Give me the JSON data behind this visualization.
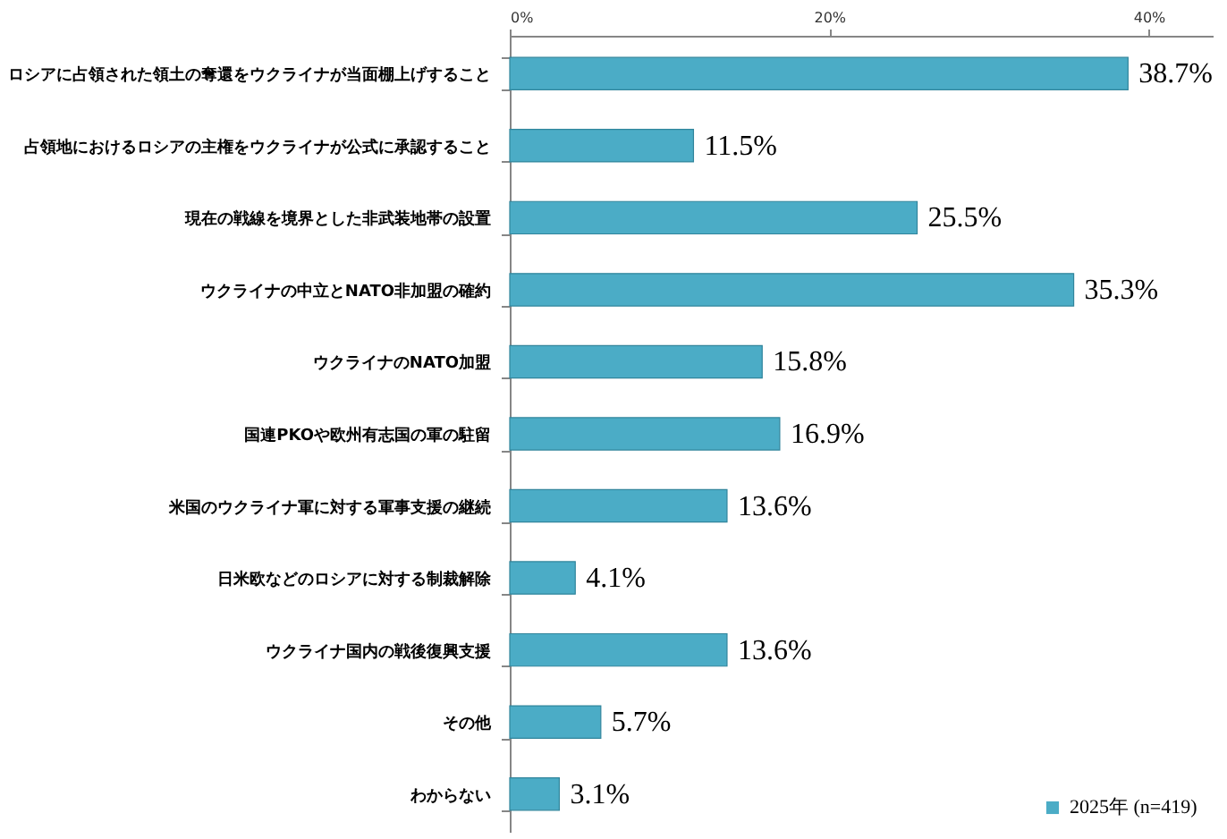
{
  "chart_data": {
    "type": "bar",
    "orientation": "horizontal",
    "categories": [
      "ロシアに占領された領土の奪還をウクライナが当面棚上げすること",
      "占領地におけるロシアの主権をウクライナが公式に承認すること",
      "現在の戦線を境界とした非武装地帯の設置",
      "ウクライナの中立とNATO非加盟の確約",
      "ウクライナのNATO加盟",
      "国連PKOや欧州有志国の軍の駐留",
      "米国のウクライナ軍に対する軍事支援の継続",
      "日米欧などのロシアに対する制裁解除",
      "ウクライナ国内の戦後復興支援",
      "その他",
      "わからない"
    ],
    "series": [
      {
        "name": "2025年 (n=419)",
        "color": "#4bacc6",
        "values": [
          38.7,
          11.5,
          25.5,
          35.3,
          15.8,
          16.9,
          13.6,
          4.1,
          13.6,
          5.7,
          3.1
        ],
        "value_labels": [
          "38.7%",
          "11.5%",
          "25.5%",
          "35.3%",
          "15.8%",
          "16.9%",
          "13.6%",
          "4.1%",
          "13.6%",
          "5.7%",
          "3.1%"
        ]
      }
    ],
    "xlim": [
      0,
      44
    ],
    "xticks": [
      {
        "value": 0,
        "label": "0%"
      },
      {
        "value": 20,
        "label": "20%"
      },
      {
        "value": 40,
        "label": "40%"
      }
    ],
    "grid": false,
    "legend": "bottom right"
  }
}
